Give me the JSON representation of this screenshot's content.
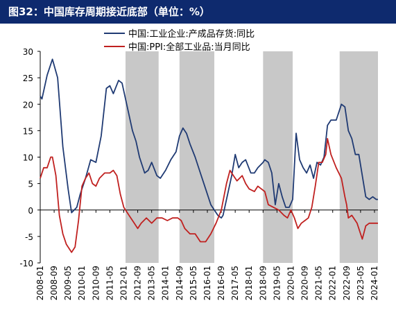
{
  "header": {
    "title": "图32：中国库存周期接近底部（单位：%）"
  },
  "colors": {
    "header_bg": "#0e2a6e",
    "series_navy": "#1f3a73",
    "series_red": "#c0201f",
    "shade": "#c8c8c8"
  },
  "chart_data": {
    "type": "line",
    "title": "图32：中国库存周期接近底部（单位：%）",
    "xlabel": "",
    "ylabel": "",
    "ylim": [
      -10,
      30
    ],
    "yticks": [
      -10,
      -5,
      0,
      5,
      10,
      15,
      20,
      25,
      30
    ],
    "xlim": [
      "2008-01",
      "2024-03"
    ],
    "xticks": [
      "2008-01",
      "2008-09",
      "2009-05",
      "2010-01",
      "2010-09",
      "2011-05",
      "2012-01",
      "2012-09",
      "2013-05",
      "2014-01",
      "2014-09",
      "2015-05",
      "2016-01",
      "2016-09",
      "2017-05",
      "2018-01",
      "2018-09",
      "2019-05",
      "2020-01",
      "2020-09",
      "2021-05",
      "2022-01",
      "2022-09",
      "2023-05",
      "2024-01"
    ],
    "grid": false,
    "legend_position": "top",
    "shaded_periods": [
      {
        "start": "2012-02",
        "end": "2013-09"
      },
      {
        "start": "2014-09",
        "end": "2016-05"
      },
      {
        "start": "2018-09",
        "end": "2020-02"
      },
      {
        "start": "2022-05",
        "end": "2024-03"
      }
    ],
    "series": [
      {
        "name": "中国:工业企业:产成品存货:同比",
        "color": "#1f3a73",
        "points": [
          [
            "2008-01",
            21.5
          ],
          [
            "2008-02",
            21.0
          ],
          [
            "2008-05",
            25.5
          ],
          [
            "2008-08",
            28.5
          ],
          [
            "2008-11",
            25.0
          ],
          [
            "2009-02",
            12.0
          ],
          [
            "2009-05",
            4.0
          ],
          [
            "2009-07",
            -0.5
          ],
          [
            "2009-10",
            0.5
          ],
          [
            "2009-12",
            3.0
          ],
          [
            "2010-03",
            6.0
          ],
          [
            "2010-06",
            9.5
          ],
          [
            "2010-09",
            9.0
          ],
          [
            "2010-12",
            14.0
          ],
          [
            "2011-03",
            23.0
          ],
          [
            "2011-05",
            23.5
          ],
          [
            "2011-07",
            22.0
          ],
          [
            "2011-10",
            24.5
          ],
          [
            "2011-12",
            24.0
          ],
          [
            "2012-03",
            19.5
          ],
          [
            "2012-06",
            15.0
          ],
          [
            "2012-08",
            13.0
          ],
          [
            "2012-10",
            10.0
          ],
          [
            "2013-01",
            7.0
          ],
          [
            "2013-03",
            7.5
          ],
          [
            "2013-05",
            9.0
          ],
          [
            "2013-08",
            6.5
          ],
          [
            "2013-10",
            6.0
          ],
          [
            "2014-01",
            7.5
          ],
          [
            "2014-04",
            9.5
          ],
          [
            "2014-07",
            11.0
          ],
          [
            "2014-09",
            14.0
          ],
          [
            "2014-11",
            15.5
          ],
          [
            "2015-01",
            14.5
          ],
          [
            "2015-03",
            12.5
          ],
          [
            "2015-06",
            10.0
          ],
          [
            "2015-09",
            7.0
          ],
          [
            "2015-12",
            4.0
          ],
          [
            "2016-03",
            1.0
          ],
          [
            "2016-05",
            0.0
          ],
          [
            "2016-07",
            -1.0
          ],
          [
            "2016-09",
            -1.5
          ],
          [
            "2016-10",
            -1.0
          ],
          [
            "2017-01",
            3.5
          ],
          [
            "2017-03",
            6.5
          ],
          [
            "2017-05",
            10.5
          ],
          [
            "2017-07",
            8.0
          ],
          [
            "2017-09",
            9.0
          ],
          [
            "2017-11",
            9.5
          ],
          [
            "2018-02",
            7.0
          ],
          [
            "2018-04",
            7.0
          ],
          [
            "2018-06",
            8.0
          ],
          [
            "2018-09",
            9.0
          ],
          [
            "2018-10",
            9.5
          ],
          [
            "2018-12",
            9.0
          ],
          [
            "2019-02",
            7.0
          ],
          [
            "2019-04",
            1.0
          ],
          [
            "2019-06",
            5.0
          ],
          [
            "2019-08",
            2.5
          ],
          [
            "2019-10",
            0.5
          ],
          [
            "2019-12",
            0.5
          ],
          [
            "2020-02",
            2.0
          ],
          [
            "2020-04",
            14.5
          ],
          [
            "2020-06",
            9.5
          ],
          [
            "2020-08",
            8.0
          ],
          [
            "2020-10",
            7.0
          ],
          [
            "2020-12",
            8.5
          ],
          [
            "2021-02",
            6.0
          ],
          [
            "2021-04",
            9.0
          ],
          [
            "2021-06",
            8.5
          ],
          [
            "2021-08",
            10.0
          ],
          [
            "2021-10",
            16.0
          ],
          [
            "2021-12",
            17.0
          ],
          [
            "2022-03",
            17.0
          ],
          [
            "2022-06",
            20.0
          ],
          [
            "2022-08",
            19.5
          ],
          [
            "2022-10",
            15.0
          ],
          [
            "2022-12",
            13.5
          ],
          [
            "2023-02",
            10.5
          ],
          [
            "2023-04",
            10.5
          ],
          [
            "2023-06",
            6.5
          ],
          [
            "2023-08",
            2.5
          ],
          [
            "2023-10",
            2.0
          ],
          [
            "2023-12",
            2.5
          ],
          [
            "2024-02",
            2.0
          ],
          [
            "2024-03",
            2.0
          ]
        ]
      },
      {
        "name": "中国:PPI:全部工业品:当月同比",
        "color": "#c0201f",
        "points": [
          [
            "2008-01",
            6.0
          ],
          [
            "2008-03",
            8.0
          ],
          [
            "2008-05",
            8.0
          ],
          [
            "2008-07",
            10.0
          ],
          [
            "2008-08",
            10.0
          ],
          [
            "2008-10",
            6.5
          ],
          [
            "2008-12",
            -1.0
          ],
          [
            "2009-02",
            -4.5
          ],
          [
            "2009-04",
            -6.5
          ],
          [
            "2009-06",
            -7.5
          ],
          [
            "2009-07",
            -8.0
          ],
          [
            "2009-09",
            -7.0
          ],
          [
            "2009-11",
            -2.0
          ],
          [
            "2010-01",
            4.5
          ],
          [
            "2010-03",
            6.0
          ],
          [
            "2010-05",
            7.0
          ],
          [
            "2010-07",
            5.0
          ],
          [
            "2010-09",
            4.5
          ],
          [
            "2010-11",
            6.0
          ],
          [
            "2011-02",
            7.0
          ],
          [
            "2011-05",
            7.0
          ],
          [
            "2011-07",
            7.5
          ],
          [
            "2011-09",
            6.5
          ],
          [
            "2011-11",
            3.0
          ],
          [
            "2012-01",
            0.5
          ],
          [
            "2012-04",
            -1.0
          ],
          [
            "2012-07",
            -2.5
          ],
          [
            "2012-09",
            -3.5
          ],
          [
            "2012-11",
            -2.5
          ],
          [
            "2013-02",
            -1.5
          ],
          [
            "2013-05",
            -2.5
          ],
          [
            "2013-08",
            -1.5
          ],
          [
            "2013-11",
            -1.5
          ],
          [
            "2014-02",
            -2.0
          ],
          [
            "2014-05",
            -1.5
          ],
          [
            "2014-08",
            -1.5
          ],
          [
            "2014-10",
            -2.0
          ],
          [
            "2014-12",
            -3.5
          ],
          [
            "2015-03",
            -4.5
          ],
          [
            "2015-06",
            -4.5
          ],
          [
            "2015-09",
            -6.0
          ],
          [
            "2015-12",
            -6.0
          ],
          [
            "2016-03",
            -4.5
          ],
          [
            "2016-06",
            -2.5
          ],
          [
            "2016-09",
            0.0
          ],
          [
            "2016-12",
            5.0
          ],
          [
            "2017-02",
            7.5
          ],
          [
            "2017-04",
            6.5
          ],
          [
            "2017-06",
            5.5
          ],
          [
            "2017-09",
            6.5
          ],
          [
            "2017-11",
            5.0
          ],
          [
            "2018-01",
            4.0
          ],
          [
            "2018-04",
            3.5
          ],
          [
            "2018-06",
            4.5
          ],
          [
            "2018-08",
            4.0
          ],
          [
            "2018-10",
            3.5
          ],
          [
            "2018-12",
            1.0
          ],
          [
            "2019-03",
            0.5
          ],
          [
            "2019-06",
            0.0
          ],
          [
            "2019-09",
            -1.0
          ],
          [
            "2019-11",
            -1.5
          ],
          [
            "2020-01",
            0.0
          ],
          [
            "2020-03",
            -1.5
          ],
          [
            "2020-05",
            -3.5
          ],
          [
            "2020-07",
            -2.5
          ],
          [
            "2020-09",
            -2.0
          ],
          [
            "2020-11",
            -1.5
          ],
          [
            "2021-01",
            0.5
          ],
          [
            "2021-03",
            4.5
          ],
          [
            "2021-05",
            9.0
          ],
          [
            "2021-07",
            9.0
          ],
          [
            "2021-09",
            10.5
          ],
          [
            "2021-10",
            13.5
          ],
          [
            "2021-12",
            10.5
          ],
          [
            "2022-03",
            8.0
          ],
          [
            "2022-06",
            6.0
          ],
          [
            "2022-08",
            2.5
          ],
          [
            "2022-09",
            1.0
          ],
          [
            "2022-10",
            -1.5
          ],
          [
            "2022-12",
            -1.0
          ],
          [
            "2023-03",
            -2.5
          ],
          [
            "2023-05",
            -4.5
          ],
          [
            "2023-06",
            -5.5
          ],
          [
            "2023-08",
            -3.0
          ],
          [
            "2023-10",
            -2.5
          ],
          [
            "2023-12",
            -2.5
          ],
          [
            "2024-02",
            -2.5
          ],
          [
            "2024-03",
            -2.5
          ]
        ]
      }
    ]
  }
}
